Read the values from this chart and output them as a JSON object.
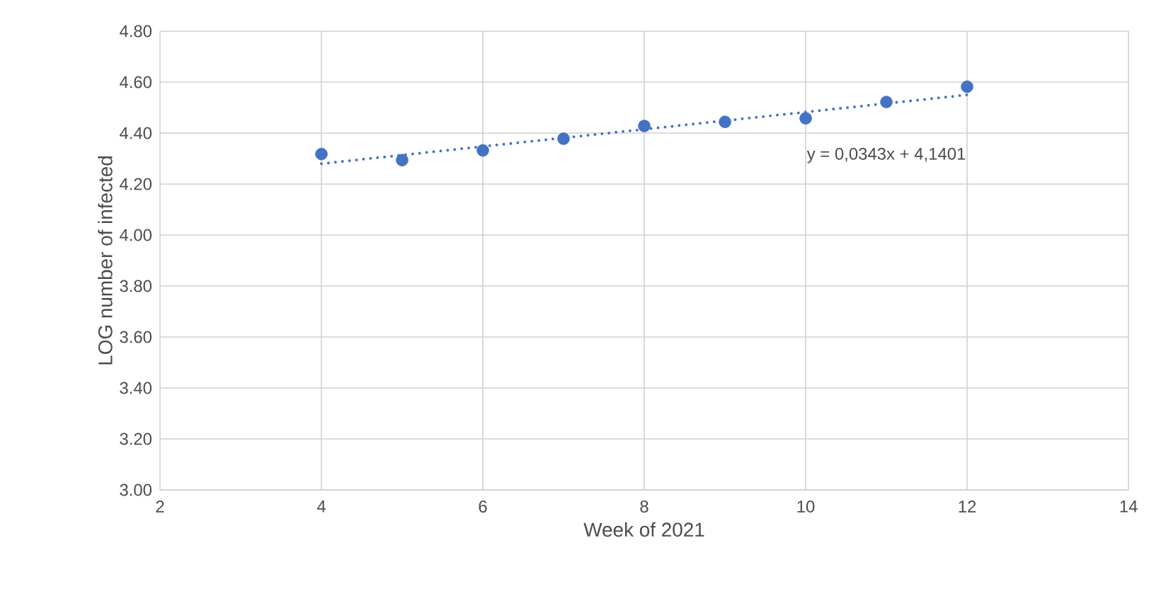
{
  "chart_data": {
    "type": "scatter",
    "xlabel": "Week of 2021",
    "ylabel": "LOG number of infected",
    "series": [
      {
        "color": "#4472c4",
        "marker": "circle",
        "x": [
          4,
          5,
          6,
          7,
          8,
          9,
          10,
          11,
          12
        ],
        "values": [
          4.318,
          4.294,
          4.332,
          4.378,
          4.428,
          4.444,
          4.458,
          4.522,
          4.582
        ]
      },
      {
        "type": "line",
        "color": "#4472c4",
        "line_style": "dotted",
        "marker": "none",
        "x": [
          4,
          12
        ],
        "values": [
          4.28,
          4.55
        ]
      }
    ],
    "annotations": [
      {
        "text": "y = 0,0343x + 4,1401",
        "x": 11,
        "y": 4.5174
      }
    ],
    "xlim": [
      2,
      14
    ],
    "xticks": [
      2,
      4,
      6,
      8,
      10,
      12,
      14
    ],
    "ylim": [
      3.0,
      4.8
    ],
    "yticks": [
      {
        "value": 3.0,
        "label": "3.00"
      },
      {
        "value": 3.2,
        "label": "3.20"
      },
      {
        "value": 3.4,
        "label": "3.40"
      },
      {
        "value": 3.6,
        "label": "3.60"
      },
      {
        "value": 3.8,
        "label": "3.80"
      },
      {
        "value": 4.0,
        "label": "4.00"
      },
      {
        "value": 4.2,
        "label": "4.20"
      },
      {
        "value": 4.4,
        "label": "4.40"
      },
      {
        "value": 4.6,
        "label": "4.60"
      },
      {
        "value": 4.8,
        "label": "4.80"
      }
    ],
    "grid": true
  }
}
